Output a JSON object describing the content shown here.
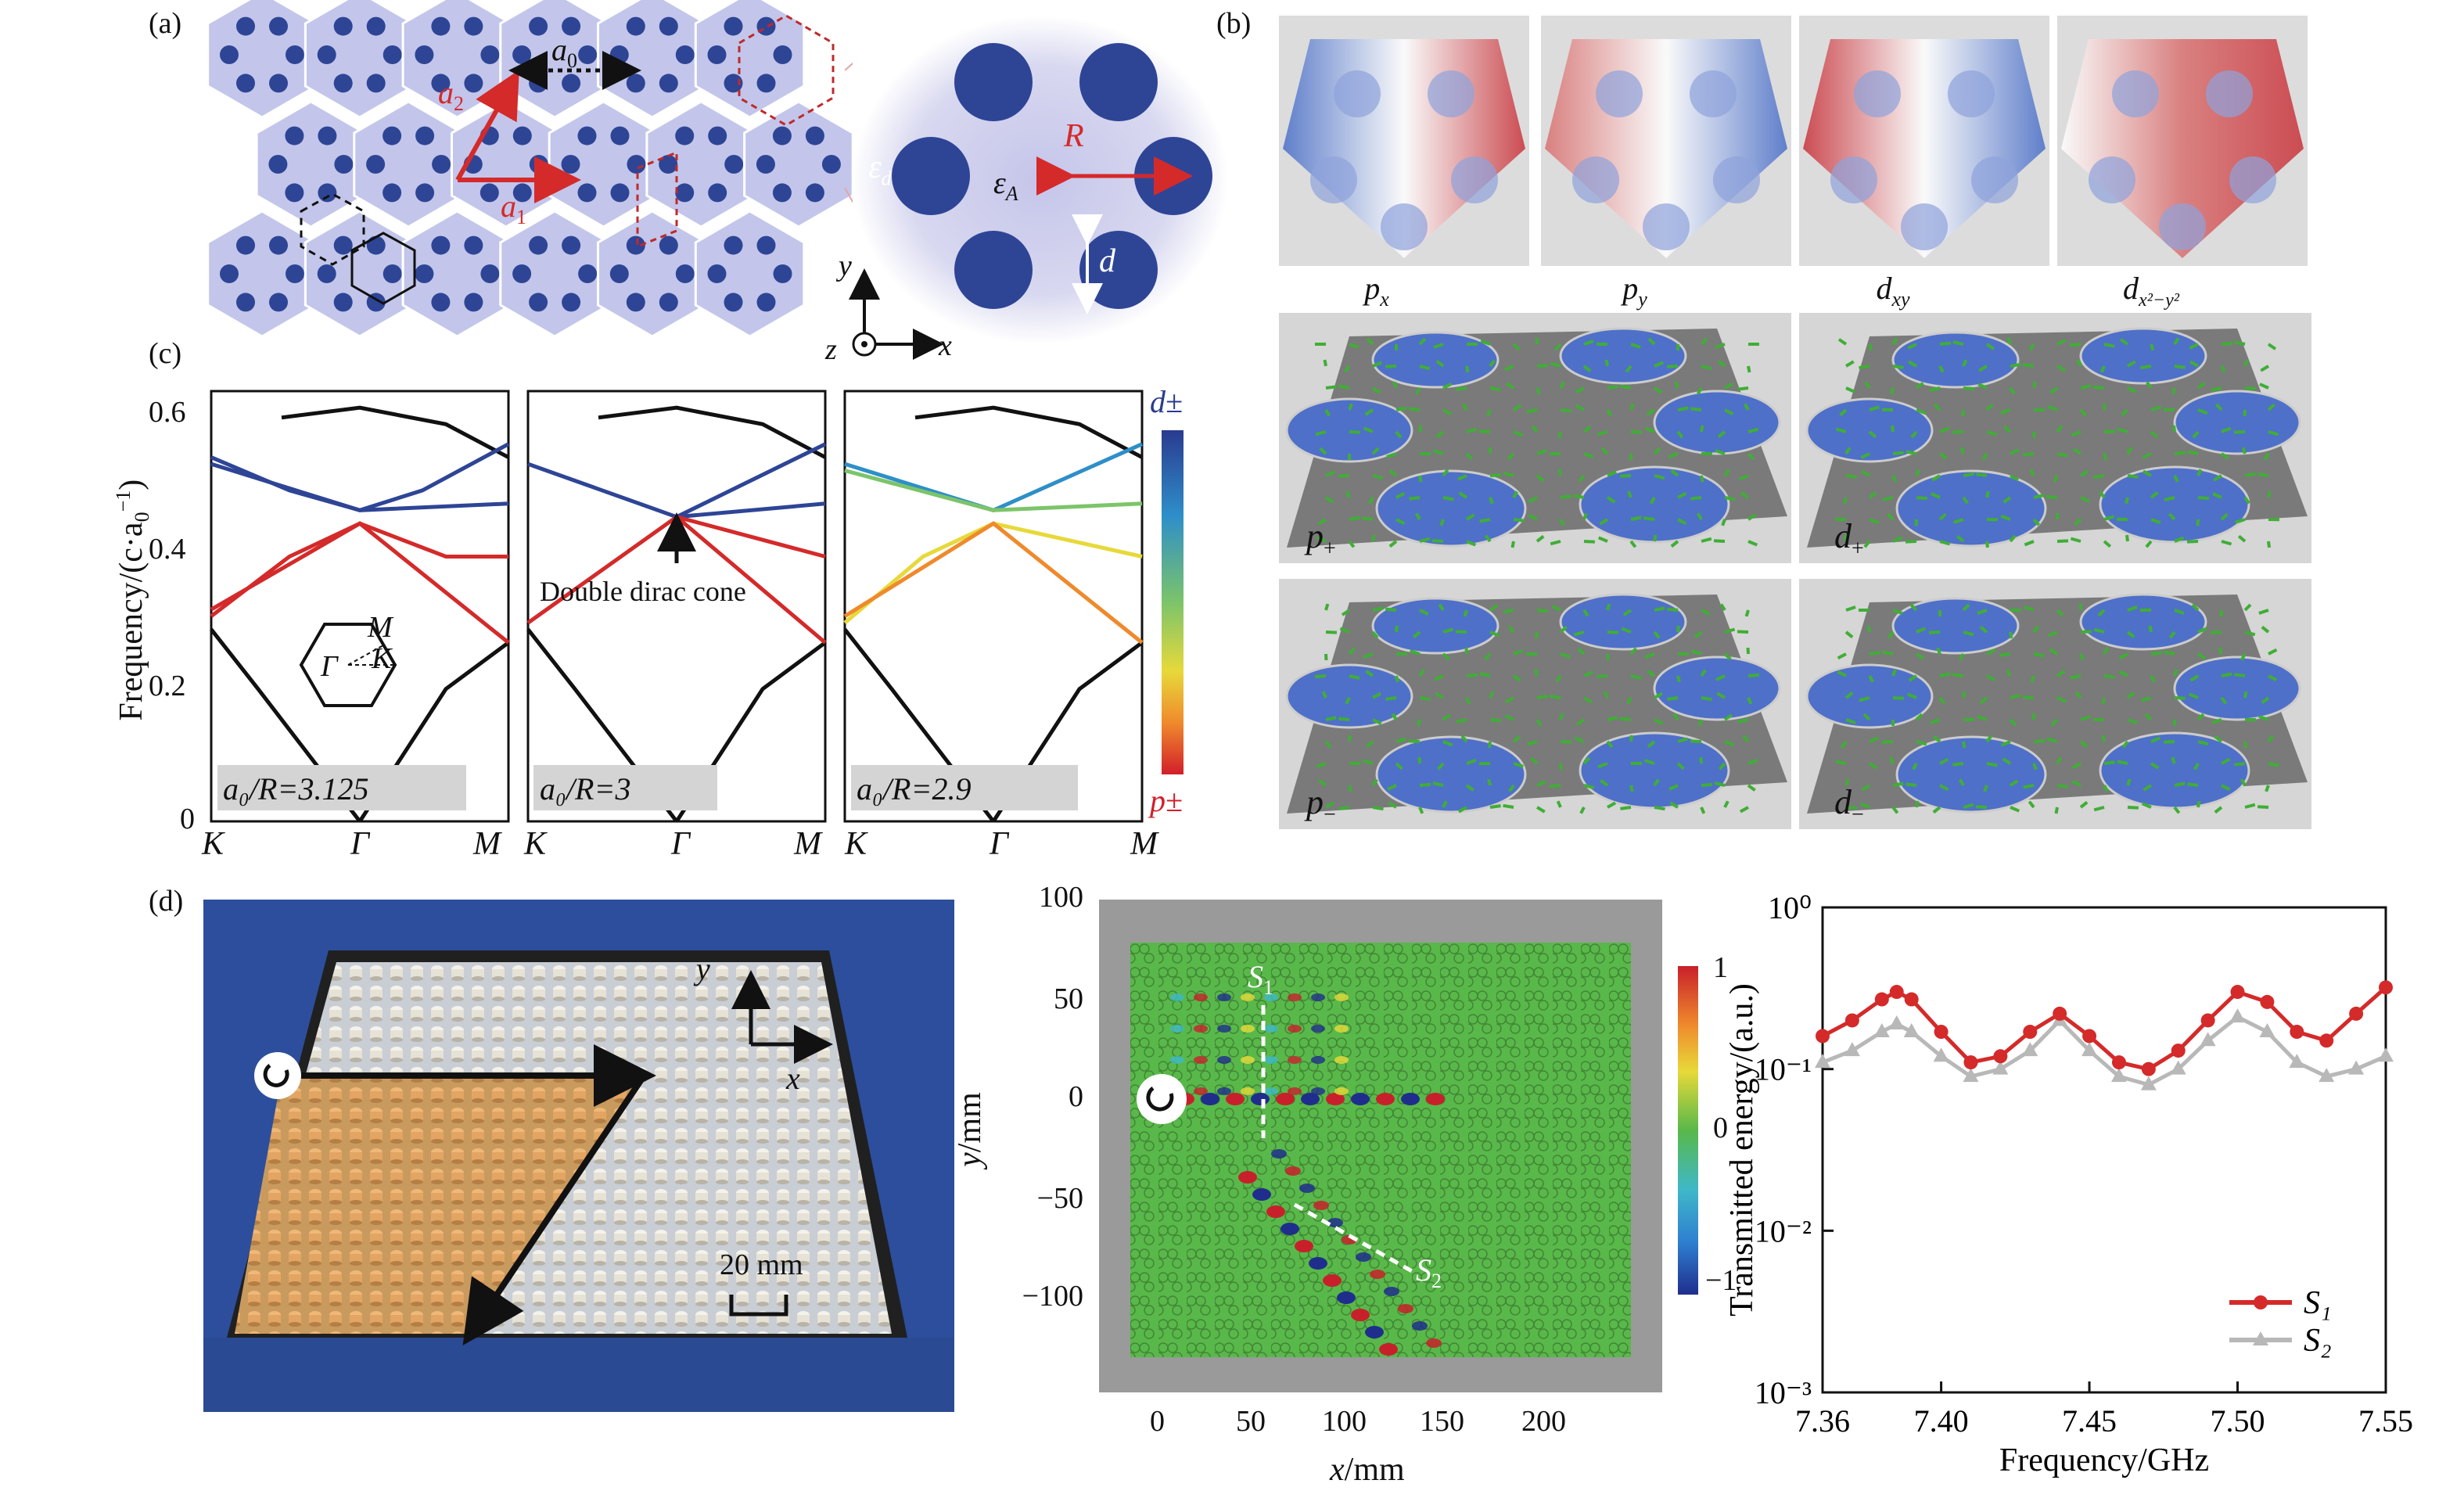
{
  "panels": {
    "a": {
      "label": "(a)",
      "lattice_labels": {
        "a0": "a",
        "a0_sub": "0",
        "a1": "a",
        "a1_sub": "1",
        "a2": "a",
        "a2_sub": "2"
      },
      "unit_cell_labels": {
        "eps_d": "ε",
        "eps_d_sub": "d",
        "eps_A": "ε",
        "eps_A_sub": "A",
        "R": "R",
        "d": "d"
      },
      "axes": {
        "y": "y",
        "x": "x",
        "z": "z"
      }
    },
    "b": {
      "label": "(b)",
      "orbital_labels": [
        "p",
        "p",
        "d",
        "d"
      ],
      "orbital_subs": [
        "x",
        "y",
        "xy",
        "x²−y²"
      ],
      "vector_labels": [
        "p",
        "d",
        "p",
        "d"
      ],
      "vector_subs": [
        "+",
        "+",
        "−",
        "−"
      ]
    },
    "c": {
      "label": "(c)",
      "ylabel": "Frequency/(c·a",
      "ylabel_sub": "0",
      "ylabel_sup": "−1",
      "ylabel_end": ")",
      "yticks": [
        "0.6",
        "0.4",
        "0.2",
        "0"
      ],
      "xticks": [
        "K",
        "Γ",
        "M"
      ],
      "sublabels": [
        "a₀/R=3.125",
        "a₀/R=3",
        "a₀/R=2.9"
      ],
      "annotation": "Double dirac cone",
      "bz_labels": {
        "M": "M",
        "K": "K",
        "G": "Γ"
      },
      "colorbar": {
        "top": "d±",
        "bottom": "p±"
      }
    },
    "d": {
      "label": "(d)",
      "photo_labels": {
        "y": "y",
        "x": "x",
        "scale": "20 mm"
      },
      "field_map": {
        "xlabel_italic": "x",
        "xlabel_rest": "/mm",
        "ylabel_italic": "y",
        "ylabel_rest": "/mm",
        "xticks": [
          "0",
          "50",
          "100",
          "150",
          "200"
        ],
        "yticks": [
          "100",
          "50",
          "0",
          "−50",
          "−100"
        ],
        "colorbar_ticks": [
          "1",
          "0",
          "−1"
        ],
        "s1": "S",
        "s1_sub": "1",
        "s2": "S",
        "s2_sub": "2"
      }
    }
  },
  "chart_data": {
    "type": "line",
    "xlabel": "Frequency/GHz",
    "ylabel": "Transmitted energy/(a.u.)",
    "x": [
      7.36,
      7.37,
      7.38,
      7.385,
      7.39,
      7.4,
      7.41,
      7.42,
      7.43,
      7.44,
      7.45,
      7.46,
      7.47,
      7.48,
      7.49,
      7.5,
      7.51,
      7.52,
      7.53,
      7.54,
      7.55
    ],
    "xticks": [
      "7.36",
      "7.40",
      "7.45",
      "7.50",
      "7.55"
    ],
    "xlim": [
      7.36,
      7.55
    ],
    "ylim": [
      0.001,
      1
    ],
    "yscale": "log",
    "yticks": [
      "10⁰",
      "10⁻¹",
      "10⁻²",
      "10⁻³"
    ],
    "series": [
      {
        "name": "S₁",
        "color": "#d42a2a",
        "values": [
          0.16,
          0.2,
          0.27,
          0.3,
          0.27,
          0.17,
          0.11,
          0.12,
          0.17,
          0.22,
          0.16,
          0.11,
          0.1,
          0.13,
          0.2,
          0.3,
          0.26,
          0.17,
          0.15,
          0.22,
          0.32
        ]
      },
      {
        "name": "S₂",
        "color": "#b8b8b8",
        "values": [
          0.11,
          0.13,
          0.17,
          0.19,
          0.17,
          0.12,
          0.09,
          0.1,
          0.13,
          0.2,
          0.13,
          0.09,
          0.08,
          0.1,
          0.15,
          0.21,
          0.17,
          0.11,
          0.09,
          0.1,
          0.12
        ]
      }
    ],
    "legend": "bottom-right"
  }
}
